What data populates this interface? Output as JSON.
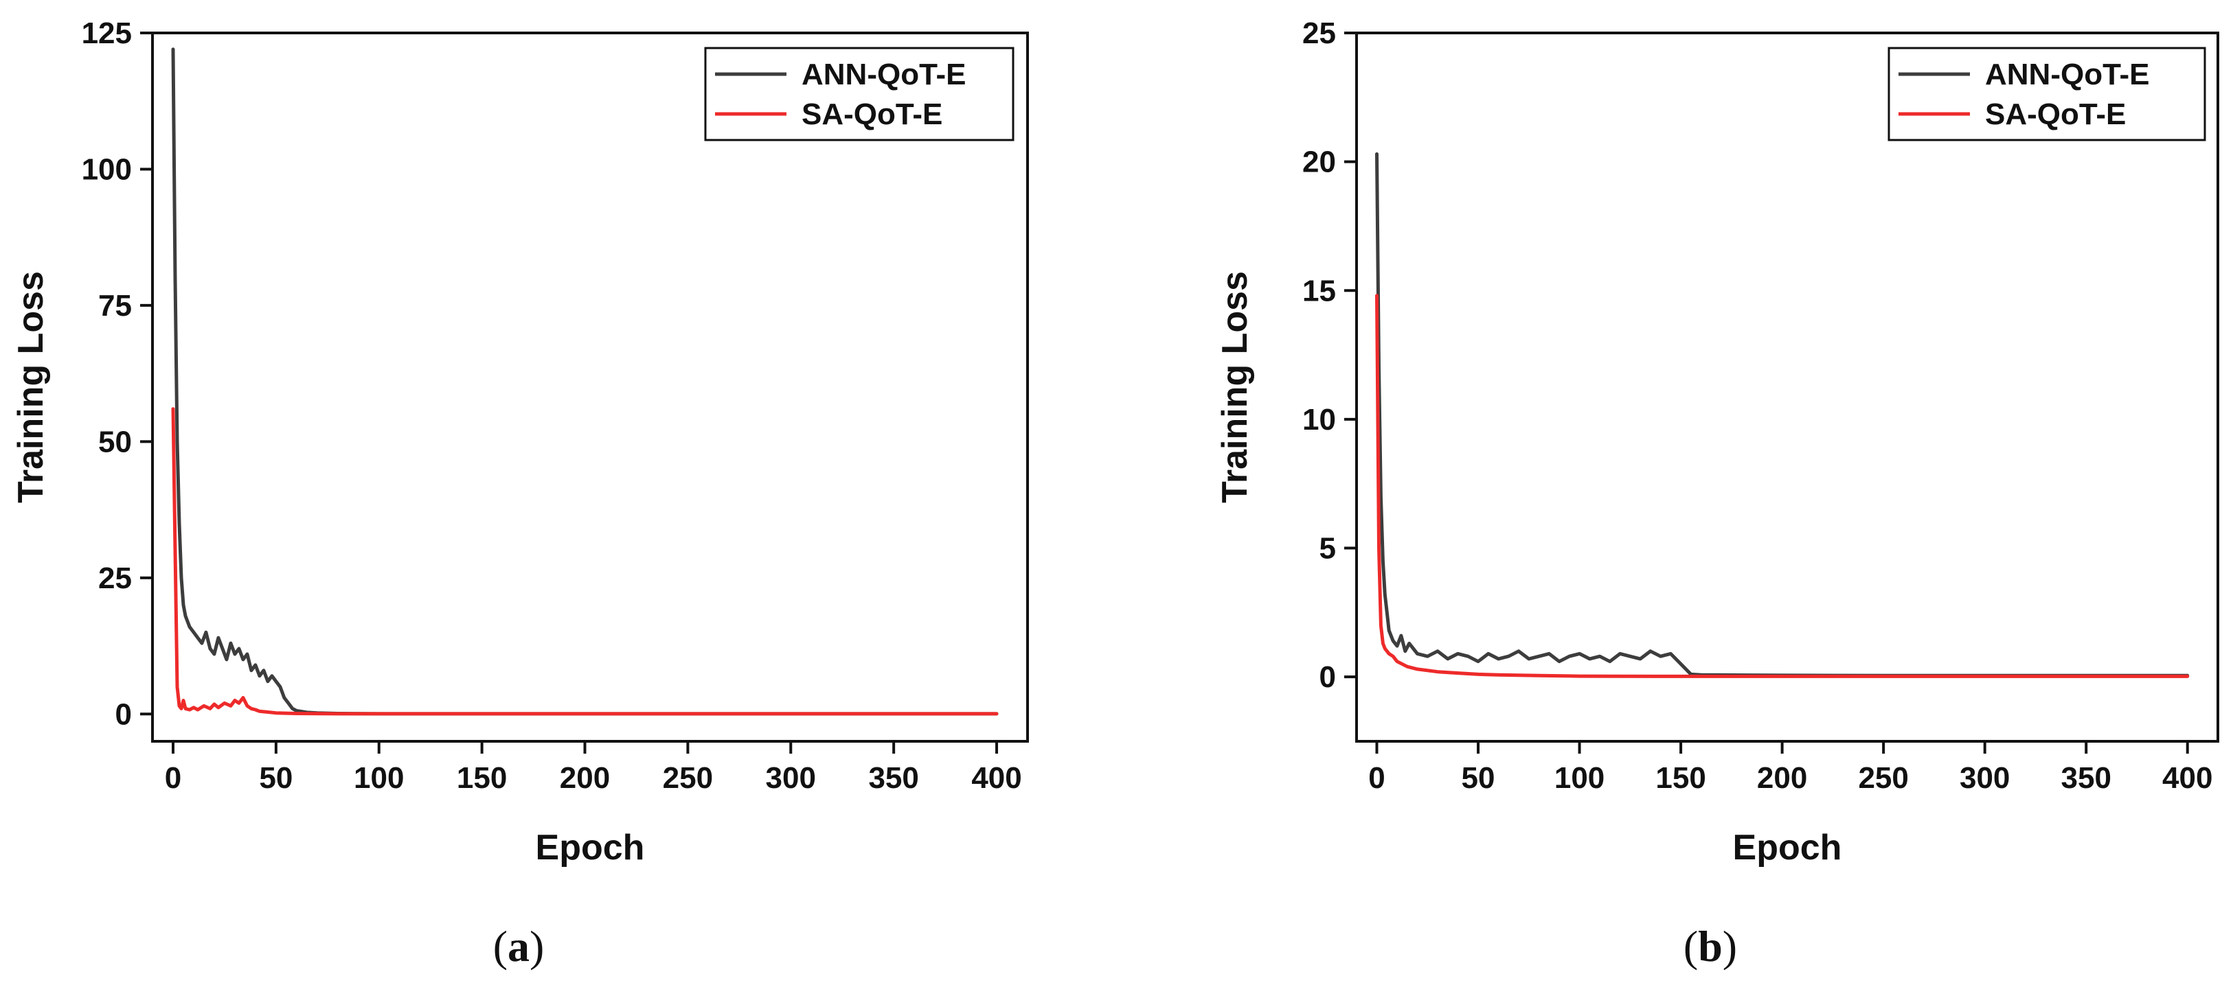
{
  "chart_data": [
    {
      "type": "line",
      "caption": "a",
      "xlabel": "Epoch",
      "ylabel": "Training Loss",
      "xlim": [
        -10,
        415
      ],
      "ylim": [
        -5,
        125
      ],
      "xticks": [
        0,
        50,
        100,
        150,
        200,
        250,
        300,
        350,
        400
      ],
      "yticks": [
        0,
        25,
        50,
        75,
        100,
        125
      ],
      "legend_position": "top-right",
      "grid": false,
      "series": [
        {
          "name": "ANN-QoT-E",
          "color": "#3d3d3d",
          "x": [
            0,
            1,
            2,
            3,
            4,
            5,
            6,
            8,
            10,
            12,
            14,
            16,
            18,
            20,
            22,
            24,
            26,
            28,
            30,
            32,
            34,
            36,
            38,
            40,
            42,
            44,
            46,
            48,
            50,
            52,
            54,
            56,
            58,
            60,
            65,
            70,
            80,
            100,
            150,
            200,
            250,
            300,
            350,
            400
          ],
          "values": [
            122,
            80,
            50,
            35,
            25,
            20,
            18,
            16,
            15,
            14,
            13,
            15,
            12,
            11,
            14,
            12,
            10,
            13,
            11,
            12,
            10,
            11,
            8,
            9,
            7,
            8,
            6,
            7,
            6,
            5,
            3,
            2,
            1,
            0.6,
            0.3,
            0.2,
            0.1,
            0.05,
            0.05,
            0.05,
            0.05,
            0.05,
            0.05,
            0.05
          ]
        },
        {
          "name": "SA-QoT-E",
          "color": "#ee2a2a",
          "x": [
            0,
            1,
            2,
            3,
            4,
            5,
            6,
            8,
            10,
            12,
            15,
            18,
            20,
            22,
            25,
            28,
            30,
            32,
            34,
            36,
            38,
            40,
            42,
            45,
            50,
            60,
            80,
            100,
            150,
            200,
            250,
            300,
            350,
            400
          ],
          "values": [
            56,
            30,
            5,
            1.5,
            1,
            2.5,
            1,
            0.8,
            1.2,
            0.8,
            1.5,
            1,
            1.8,
            1.2,
            2,
            1.5,
            2.5,
            2,
            3,
            1.5,
            1,
            0.8,
            0.5,
            0.4,
            0.2,
            0.1,
            0.05,
            0.05,
            0.05,
            0.05,
            0.05,
            0.05,
            0.05,
            0.05
          ]
        }
      ]
    },
    {
      "type": "line",
      "caption": "b",
      "xlabel": "Epoch",
      "ylabel": "Training Loss",
      "xlim": [
        -10,
        415
      ],
      "ylim": [
        -2.5,
        25
      ],
      "xticks": [
        0,
        50,
        100,
        150,
        200,
        250,
        300,
        350,
        400
      ],
      "yticks": [
        0,
        5,
        10,
        15,
        20,
        25
      ],
      "legend_position": "top-right",
      "grid": false,
      "series": [
        {
          "name": "ANN-QoT-E",
          "color": "#3d3d3d",
          "x": [
            0,
            1,
            2,
            3,
            4,
            5,
            6,
            8,
            10,
            12,
            14,
            16,
            20,
            25,
            30,
            35,
            40,
            45,
            50,
            55,
            60,
            65,
            70,
            75,
            80,
            85,
            90,
            95,
            100,
            105,
            110,
            115,
            120,
            125,
            130,
            135,
            140,
            145,
            150,
            155,
            160,
            200,
            250,
            300,
            350,
            400
          ],
          "values": [
            20.3,
            12,
            7,
            4.5,
            3.2,
            2.5,
            1.8,
            1.4,
            1.2,
            1.6,
            1.0,
            1.3,
            0.9,
            0.8,
            1.0,
            0.7,
            0.9,
            0.8,
            0.6,
            0.9,
            0.7,
            0.8,
            1.0,
            0.7,
            0.8,
            0.9,
            0.6,
            0.8,
            0.9,
            0.7,
            0.8,
            0.6,
            0.9,
            0.8,
            0.7,
            1.0,
            0.8,
            0.9,
            0.5,
            0.1,
            0.08,
            0.06,
            0.05,
            0.05,
            0.05,
            0.05
          ]
        },
        {
          "name": "SA-QoT-E",
          "color": "#ee2a2a",
          "x": [
            0,
            1,
            2,
            3,
            4,
            5,
            6,
            8,
            10,
            15,
            20,
            30,
            40,
            50,
            60,
            80,
            100,
            150,
            200,
            250,
            300,
            350,
            400
          ],
          "values": [
            14.8,
            5,
            2,
            1.3,
            1.1,
            1.0,
            0.9,
            0.8,
            0.6,
            0.4,
            0.3,
            0.2,
            0.15,
            0.1,
            0.08,
            0.05,
            0.03,
            0.02,
            0.02,
            0.02,
            0.02,
            0.02,
            0.02
          ]
        }
      ]
    }
  ]
}
